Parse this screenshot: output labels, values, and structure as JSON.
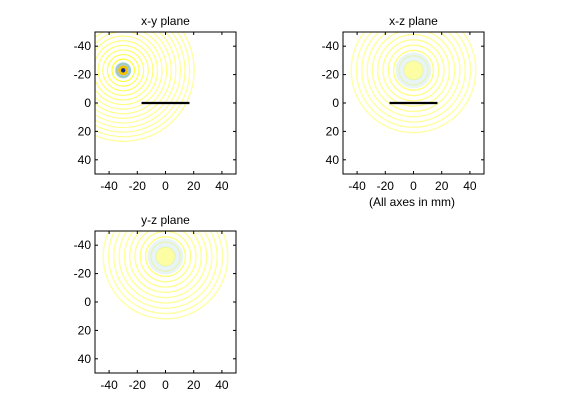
{
  "figure_note": "(All axes in mm)",
  "chart_data": [
    {
      "type": "heatmap",
      "title": "x-y plane",
      "xlim": [
        -50,
        50
      ],
      "ylim": [
        50,
        -50
      ],
      "y_reversed": true,
      "xticks": [
        -40,
        -20,
        0,
        20,
        40
      ],
      "yticks": [
        -40,
        -20,
        0,
        20,
        40
      ],
      "grid": false,
      "source": {
        "x": -30,
        "y": -23,
        "strength": "strong"
      },
      "ring_color": "#ffff00",
      "aperture_segment": {
        "from": [
          -17,
          0
        ],
        "to": [
          17,
          0
        ]
      }
    },
    {
      "type": "heatmap",
      "title": "x-z plane",
      "xlim": [
        -50,
        50
      ],
      "ylim": [
        50,
        -50
      ],
      "y_reversed": true,
      "xticks": [
        -40,
        -20,
        0,
        20,
        40
      ],
      "yticks": [
        -40,
        -20,
        0,
        20,
        40
      ],
      "grid": false,
      "source": {
        "x": 0,
        "y": -23,
        "strength": "weak"
      },
      "ring_color": "#ffff00",
      "aperture_segment": {
        "from": [
          -17,
          0
        ],
        "to": [
          17,
          0
        ]
      }
    },
    {
      "type": "heatmap",
      "title": "y-z plane",
      "xlim": [
        -50,
        50
      ],
      "ylim": [
        50,
        -50
      ],
      "y_reversed": true,
      "xticks": [
        -40,
        -20,
        0,
        20,
        40
      ],
      "yticks": [
        -40,
        -20,
        0,
        20,
        40
      ],
      "grid": false,
      "source": {
        "x": 0,
        "y": -32,
        "strength": "weak"
      },
      "ring_color": "#ffff00",
      "aperture_segment": null
    }
  ]
}
